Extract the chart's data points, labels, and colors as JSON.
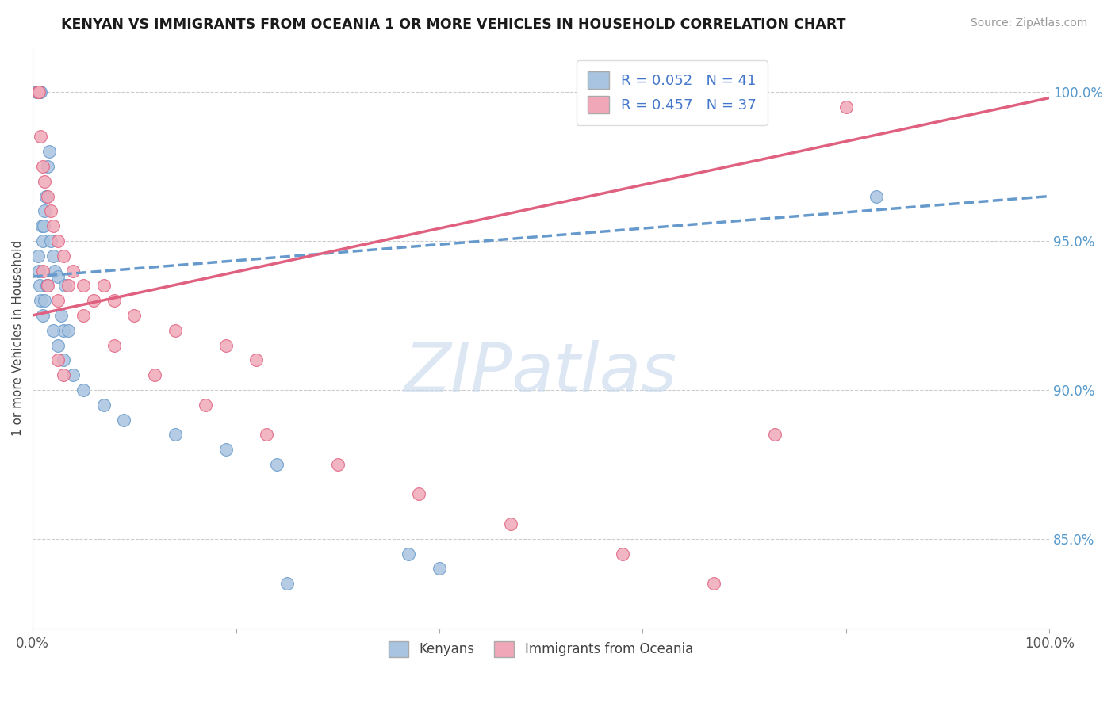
{
  "title": "KENYAN VS IMMIGRANTS FROM OCEANIA 1 OR MORE VEHICLES IN HOUSEHOLD CORRELATION CHART",
  "source": "Source: ZipAtlas.com",
  "xlabel": "",
  "ylabel": "1 or more Vehicles in Household",
  "xlim": [
    0.0,
    100.0
  ],
  "ylim": [
    82.0,
    101.5
  ],
  "yticks": [
    85.0,
    90.0,
    95.0,
    100.0
  ],
  "ytick_labels": [
    "85.0%",
    "90.0%",
    "95.0%",
    "100.0%"
  ],
  "xticks": [
    0.0,
    20.0,
    40.0,
    60.0,
    80.0,
    100.0
  ],
  "xtick_labels": [
    "0.0%",
    "",
    "",
    "",
    "",
    "100.0%"
  ],
  "kenyan_R": 0.052,
  "kenyan_N": 41,
  "oceania_R": 0.457,
  "oceania_N": 37,
  "kenyan_color": "#a8c4e0",
  "oceania_color": "#f0a8b8",
  "kenyan_line_color": "#6699cc",
  "oceania_line_color": "#e06080",
  "watermark": "ZIPatlas",
  "background_color": "#ffffff",
  "grid_color": "#cccccc",
  "kenyan_x": [
    0.4,
    0.5,
    0.6,
    0.7,
    0.8,
    0.9,
    1.0,
    1.1,
    1.2,
    1.3,
    1.5,
    1.6,
    1.8,
    2.0,
    2.2,
    2.5,
    2.8,
    3.0,
    3.2,
    3.5,
    0.5,
    0.6,
    0.7,
    0.8,
    1.0,
    1.2,
    1.4,
    2.0,
    2.5,
    3.0,
    4.0,
    5.0,
    7.0,
    9.0,
    14.0,
    19.0,
    24.0,
    37.0,
    40.0,
    83.0,
    25.0
  ],
  "kenyan_y": [
    100.0,
    100.0,
    100.0,
    100.0,
    100.0,
    95.5,
    95.0,
    95.5,
    96.0,
    96.5,
    97.5,
    98.0,
    95.0,
    94.5,
    94.0,
    93.8,
    92.5,
    92.0,
    93.5,
    92.0,
    94.5,
    94.0,
    93.5,
    93.0,
    92.5,
    93.0,
    93.5,
    92.0,
    91.5,
    91.0,
    90.5,
    90.0,
    89.5,
    89.0,
    88.5,
    88.0,
    87.5,
    84.5,
    84.0,
    96.5,
    83.5
  ],
  "oceania_x": [
    0.5,
    0.6,
    0.8,
    1.0,
    1.2,
    1.5,
    1.8,
    2.0,
    2.5,
    3.0,
    4.0,
    5.0,
    6.0,
    7.0,
    8.0,
    10.0,
    14.0,
    19.0,
    22.0,
    1.0,
    1.5,
    2.5,
    3.5,
    5.0,
    8.0,
    12.0,
    17.0,
    23.0,
    30.0,
    38.0,
    47.0,
    58.0,
    67.0,
    73.0,
    80.0,
    2.5,
    3.0
  ],
  "oceania_y": [
    100.0,
    100.0,
    98.5,
    97.5,
    97.0,
    96.5,
    96.0,
    95.5,
    95.0,
    94.5,
    94.0,
    93.5,
    93.0,
    93.5,
    93.0,
    92.5,
    92.0,
    91.5,
    91.0,
    94.0,
    93.5,
    93.0,
    93.5,
    92.5,
    91.5,
    90.5,
    89.5,
    88.5,
    87.5,
    86.5,
    85.5,
    84.5,
    83.5,
    88.5,
    99.5,
    91.0,
    90.5
  ],
  "kenyan_line_x": [
    0.0,
    100.0
  ],
  "kenyan_line_y": [
    93.8,
    96.5
  ],
  "oceania_line_x": [
    0.0,
    100.0
  ],
  "oceania_line_y": [
    92.5,
    99.8
  ]
}
